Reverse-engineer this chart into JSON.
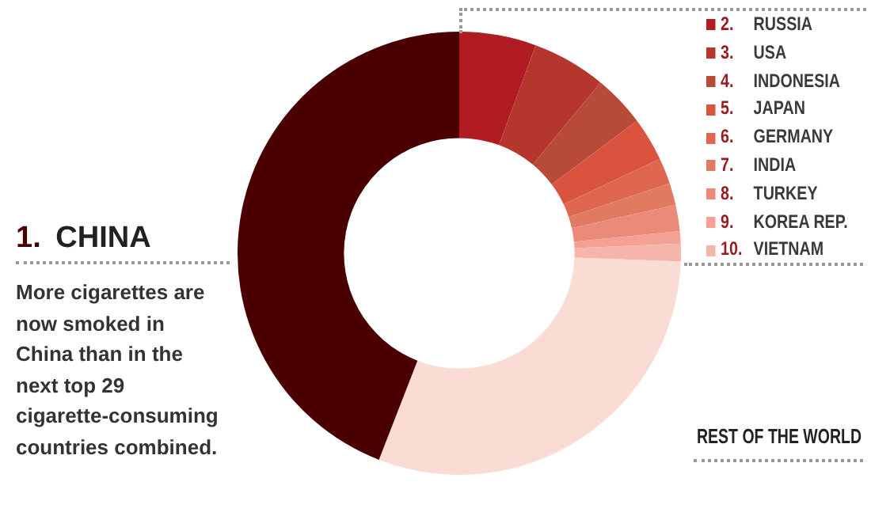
{
  "chart_data": {
    "type": "donut",
    "categories": [
      "2. RUSSIA",
      "3. USA",
      "4. INDONESIA",
      "5. JAPAN",
      "6. GERMANY",
      "7. INDIA",
      "8. TURKEY",
      "9. KOREA REP.",
      "10. VIETNAM",
      "REST OF THE WORLD",
      "1. CHINA"
    ],
    "values": [
      5.6,
      5.4,
      3.8,
      3.2,
      1.9,
      1.6,
      1.9,
      0.9,
      1.3,
      30.3,
      44.1
    ],
    "colors": [
      "#b01c22",
      "#b5362d",
      "#b84a3a",
      "#d9533f",
      "#e0674f",
      "#e07a60",
      "#ec8a7a",
      "#f4a095",
      "#f5b5aa",
      "#fadcd5",
      "#4a0000"
    ],
    "legend": "top right",
    "annotations": [
      "More cigarettes are now smoked in China than in the next top 29 cigarette-consuming countries combined."
    ]
  }
}
